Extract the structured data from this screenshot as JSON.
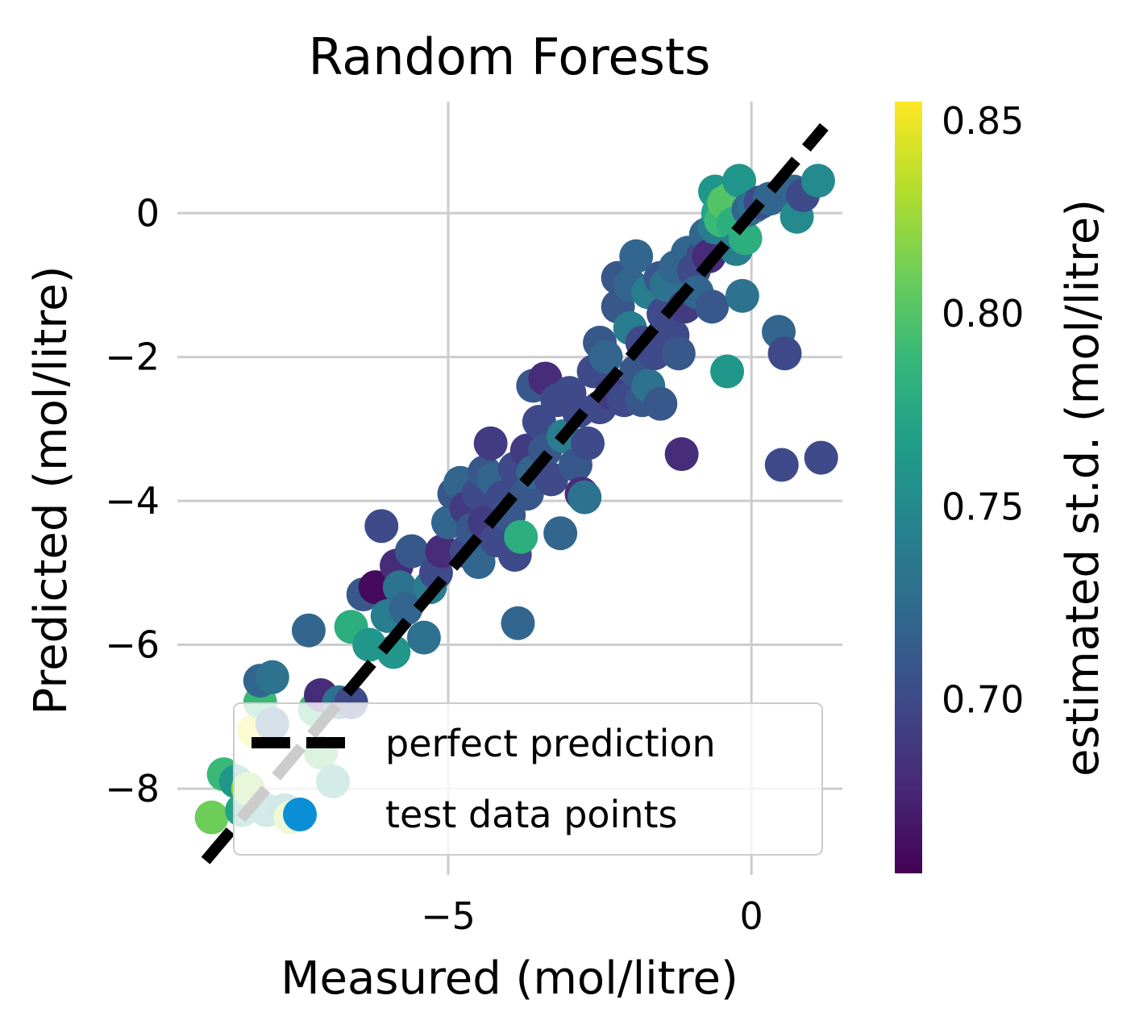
{
  "chart_data": {
    "type": "scatter",
    "title": "Random Forests",
    "xlabel": "Measured (mol/litre)",
    "ylabel": "Predicted (mol/litre)",
    "colorbar_label": "estimated st.d. (mol/litre)",
    "xlim": [
      -9.2,
      1.5
    ],
    "ylim": [
      -9.2,
      1.55
    ],
    "xticks": [
      {
        "value": -5,
        "label": "−5"
      },
      {
        "value": 0,
        "label": "0"
      }
    ],
    "yticks": [
      {
        "value": 0,
        "label": "0"
      },
      {
        "value": -2,
        "label": "−2"
      },
      {
        "value": -4,
        "label": "−4"
      },
      {
        "value": -6,
        "label": "−6"
      },
      {
        "value": -8,
        "label": "−8"
      }
    ],
    "colorbar_range": [
      0.655,
      0.855
    ],
    "colorbar_ticks": [
      {
        "value": 0.85,
        "label": "0.85"
      },
      {
        "value": 0.8,
        "label": "0.80"
      },
      {
        "value": 0.75,
        "label": "0.75"
      },
      {
        "value": 0.7,
        "label": "0.70"
      }
    ],
    "colormap": [
      "#440154",
      "#482878",
      "#3e4989",
      "#31688e",
      "#26828e",
      "#1f9e89",
      "#35b779",
      "#6ece58",
      "#b5de2b",
      "#fde725"
    ],
    "grid": true,
    "legend": {
      "placement": "lower-right",
      "entries": [
        {
          "label": "perfect prediction",
          "style": "dashed-line",
          "color": "#000000"
        },
        {
          "label": "test data points",
          "style": "marker",
          "color": "#0a8fd6"
        }
      ]
    },
    "reference_line": {
      "name": "perfect prediction",
      "x": [
        -9.0,
        1.2
      ],
      "y": [
        -9.0,
        1.2
      ]
    },
    "series": [
      {
        "name": "test data points",
        "points": [
          {
            "x": -8.9,
            "y": -8.4,
            "c": 0.81
          },
          {
            "x": -8.7,
            "y": -7.8,
            "c": 0.79
          },
          {
            "x": -8.5,
            "y": -7.9,
            "c": 0.76
          },
          {
            "x": -8.4,
            "y": -8.3,
            "c": 0.77
          },
          {
            "x": -8.3,
            "y": -8.0,
            "c": 0.82
          },
          {
            "x": -8.2,
            "y": -7.2,
            "c": 0.85
          },
          {
            "x": -8.1,
            "y": -6.8,
            "c": 0.79
          },
          {
            "x": -8.1,
            "y": -6.5,
            "c": 0.72
          },
          {
            "x": -7.9,
            "y": -6.45,
            "c": 0.73
          },
          {
            "x": -7.9,
            "y": -7.1,
            "c": 0.72
          },
          {
            "x": -8.0,
            "y": -8.3,
            "c": 0.76
          },
          {
            "x": -7.7,
            "y": -8.3,
            "c": 0.75
          },
          {
            "x": -7.6,
            "y": -8.4,
            "c": 0.83
          },
          {
            "x": -7.3,
            "y": -5.8,
            "c": 0.72
          },
          {
            "x": -7.2,
            "y": -6.9,
            "c": 0.79
          },
          {
            "x": -7.1,
            "y": -7.5,
            "c": 0.8
          },
          {
            "x": -7.1,
            "y": -6.7,
            "c": 0.68
          },
          {
            "x": -6.9,
            "y": -7.9,
            "c": 0.77
          },
          {
            "x": -6.8,
            "y": -6.8,
            "c": 0.73
          },
          {
            "x": -6.6,
            "y": -6.8,
            "c": 0.7
          },
          {
            "x": -6.6,
            "y": -5.75,
            "c": 0.78
          },
          {
            "x": -6.4,
            "y": -5.3,
            "c": 0.71
          },
          {
            "x": -6.3,
            "y": -6.0,
            "c": 0.76
          },
          {
            "x": -6.2,
            "y": -5.2,
            "c": 0.66
          },
          {
            "x": -6.1,
            "y": -4.35,
            "c": 0.7
          },
          {
            "x": -6.0,
            "y": -5.6,
            "c": 0.74
          },
          {
            "x": -5.9,
            "y": -6.1,
            "c": 0.76
          },
          {
            "x": -5.85,
            "y": -4.9,
            "c": 0.68
          },
          {
            "x": -5.8,
            "y": -5.2,
            "c": 0.73
          },
          {
            "x": -5.7,
            "y": -5.5,
            "c": 0.72
          },
          {
            "x": -5.6,
            "y": -4.7,
            "c": 0.71
          },
          {
            "x": -5.4,
            "y": -5.9,
            "c": 0.73
          },
          {
            "x": -5.3,
            "y": -5.2,
            "c": 0.74
          },
          {
            "x": -5.2,
            "y": -5.0,
            "c": 0.7
          },
          {
            "x": -5.1,
            "y": -4.7,
            "c": 0.68
          },
          {
            "x": -5.0,
            "y": -4.3,
            "c": 0.72
          },
          {
            "x": -4.9,
            "y": -3.9,
            "c": 0.71
          },
          {
            "x": -4.8,
            "y": -3.75,
            "c": 0.72
          },
          {
            "x": -4.7,
            "y": -4.1,
            "c": 0.69
          },
          {
            "x": -4.7,
            "y": -4.7,
            "c": 0.7
          },
          {
            "x": -4.6,
            "y": -4.4,
            "c": 0.71
          },
          {
            "x": -4.5,
            "y": -3.9,
            "c": 0.7
          },
          {
            "x": -4.5,
            "y": -4.85,
            "c": 0.72
          },
          {
            "x": -4.4,
            "y": -3.6,
            "c": 0.71
          },
          {
            "x": -4.4,
            "y": -4.3,
            "c": 0.69
          },
          {
            "x": -4.3,
            "y": -3.2,
            "c": 0.69
          },
          {
            "x": -4.25,
            "y": -3.7,
            "c": 0.72
          },
          {
            "x": -4.2,
            "y": -4.55,
            "c": 0.7
          },
          {
            "x": -4.1,
            "y": -3.95,
            "c": 0.7
          },
          {
            "x": -4.0,
            "y": -4.2,
            "c": 0.71
          },
          {
            "x": -3.9,
            "y": -3.55,
            "c": 0.7
          },
          {
            "x": -3.9,
            "y": -4.75,
            "c": 0.7
          },
          {
            "x": -3.85,
            "y": -5.7,
            "c": 0.72
          },
          {
            "x": -3.8,
            "y": -4.5,
            "c": 0.78
          },
          {
            "x": -3.7,
            "y": -3.3,
            "c": 0.69
          },
          {
            "x": -3.7,
            "y": -3.9,
            "c": 0.71
          },
          {
            "x": -3.6,
            "y": -2.4,
            "c": 0.71
          },
          {
            "x": -3.6,
            "y": -3.6,
            "c": 0.72
          },
          {
            "x": -3.5,
            "y": -2.9,
            "c": 0.7
          },
          {
            "x": -3.4,
            "y": -2.3,
            "c": 0.68
          },
          {
            "x": -3.4,
            "y": -3.3,
            "c": 0.71
          },
          {
            "x": -3.3,
            "y": -3.7,
            "c": 0.7
          },
          {
            "x": -3.2,
            "y": -2.6,
            "c": 0.7
          },
          {
            "x": -3.15,
            "y": -4.45,
            "c": 0.72
          },
          {
            "x": -3.1,
            "y": -3.1,
            "c": 0.74
          },
          {
            "x": -3.0,
            "y": -2.5,
            "c": 0.7
          },
          {
            "x": -2.9,
            "y": -3.5,
            "c": 0.71
          },
          {
            "x": -2.85,
            "y": -2.75,
            "c": 0.7
          },
          {
            "x": -2.8,
            "y": -3.9,
            "c": 0.68
          },
          {
            "x": -2.75,
            "y": -3.95,
            "c": 0.73
          },
          {
            "x": -2.7,
            "y": -3.2,
            "c": 0.7
          },
          {
            "x": -2.6,
            "y": -2.2,
            "c": 0.7
          },
          {
            "x": -2.5,
            "y": -1.8,
            "c": 0.71
          },
          {
            "x": -2.5,
            "y": -2.7,
            "c": 0.7
          },
          {
            "x": -2.4,
            "y": -2.0,
            "c": 0.72
          },
          {
            "x": -2.3,
            "y": -2.5,
            "c": 0.69
          },
          {
            "x": -2.2,
            "y": -1.3,
            "c": 0.71
          },
          {
            "x": -2.2,
            "y": -0.9,
            "c": 0.71
          },
          {
            "x": -2.1,
            "y": -2.6,
            "c": 0.7
          },
          {
            "x": -2.0,
            "y": -1.0,
            "c": 0.72
          },
          {
            "x": -2.0,
            "y": -1.6,
            "c": 0.74
          },
          {
            "x": -1.9,
            "y": -2.2,
            "c": 0.71
          },
          {
            "x": -1.9,
            "y": -0.6,
            "c": 0.72
          },
          {
            "x": -1.8,
            "y": -1.8,
            "c": 0.7
          },
          {
            "x": -1.8,
            "y": -2.6,
            "c": 0.71
          },
          {
            "x": -1.7,
            "y": -1.1,
            "c": 0.74
          },
          {
            "x": -1.7,
            "y": -2.4,
            "c": 0.73
          },
          {
            "x": -1.6,
            "y": -1.95,
            "c": 0.7
          },
          {
            "x": -1.5,
            "y": -0.9,
            "c": 0.71
          },
          {
            "x": -1.5,
            "y": -2.65,
            "c": 0.71
          },
          {
            "x": -1.45,
            "y": -1.4,
            "c": 0.7
          },
          {
            "x": -1.4,
            "y": -1.0,
            "c": 0.73
          },
          {
            "x": -1.3,
            "y": -1.7,
            "c": 0.7
          },
          {
            "x": -1.25,
            "y": -0.75,
            "c": 0.72
          },
          {
            "x": -1.2,
            "y": -1.95,
            "c": 0.71
          },
          {
            "x": -1.15,
            "y": -3.35,
            "c": 0.68
          },
          {
            "x": -1.1,
            "y": -1.3,
            "c": 0.69
          },
          {
            "x": -1.05,
            "y": -0.55,
            "c": 0.72
          },
          {
            "x": -0.95,
            "y": -0.8,
            "c": 0.7
          },
          {
            "x": -0.9,
            "y": -1.1,
            "c": 0.72
          },
          {
            "x": -0.8,
            "y": -0.6,
            "c": 0.7
          },
          {
            "x": -0.75,
            "y": -0.3,
            "c": 0.72
          },
          {
            "x": -0.7,
            "y": -0.6,
            "c": 0.68
          },
          {
            "x": -0.65,
            "y": -1.3,
            "c": 0.71
          },
          {
            "x": -0.6,
            "y": 0.3,
            "c": 0.76
          },
          {
            "x": -0.6,
            "y": -0.2,
            "c": 0.74
          },
          {
            "x": -0.55,
            "y": 0.0,
            "c": 0.77
          },
          {
            "x": -0.5,
            "y": -0.1,
            "c": 0.79
          },
          {
            "x": -0.45,
            "y": 0.15,
            "c": 0.8
          },
          {
            "x": -0.4,
            "y": -2.2,
            "c": 0.76
          },
          {
            "x": -0.35,
            "y": 0.2,
            "c": 0.8
          },
          {
            "x": -0.3,
            "y": -0.15,
            "c": 0.78
          },
          {
            "x": -0.25,
            "y": -0.5,
            "c": 0.74
          },
          {
            "x": -0.2,
            "y": 0.45,
            "c": 0.76
          },
          {
            "x": -0.15,
            "y": -1.15,
            "c": 0.73
          },
          {
            "x": -0.1,
            "y": -0.35,
            "c": 0.78
          },
          {
            "x": -0.05,
            "y": 0.05,
            "c": 0.72
          },
          {
            "x": 0.05,
            "y": 0.1,
            "c": 0.73
          },
          {
            "x": 0.15,
            "y": 0.15,
            "c": 0.7
          },
          {
            "x": 0.3,
            "y": 0.2,
            "c": 0.72
          },
          {
            "x": 0.45,
            "y": -1.65,
            "c": 0.72
          },
          {
            "x": 0.5,
            "y": -3.5,
            "c": 0.7
          },
          {
            "x": 0.55,
            "y": -1.95,
            "c": 0.7
          },
          {
            "x": 0.7,
            "y": 0.3,
            "c": 0.72
          },
          {
            "x": 0.75,
            "y": -0.05,
            "c": 0.75
          },
          {
            "x": 0.85,
            "y": 0.25,
            "c": 0.7
          },
          {
            "x": 1.1,
            "y": 0.45,
            "c": 0.75
          },
          {
            "x": 1.15,
            "y": -3.4,
            "c": 0.7
          }
        ]
      }
    ]
  }
}
